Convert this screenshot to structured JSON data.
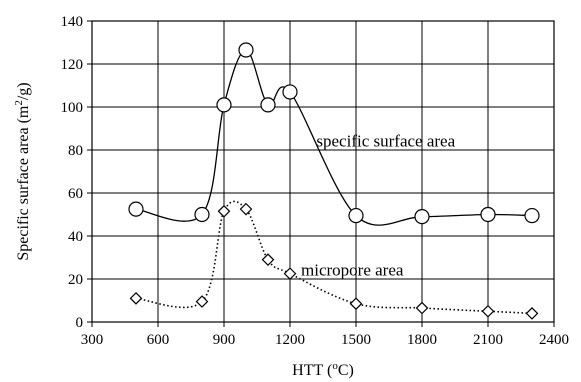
{
  "chart_data": {
    "type": "line",
    "title": "",
    "xlabel": "HTT (",
    "xlabel_sup": "o",
    "xlabel_end": "C)",
    "ylabel": "Specific surface area (m",
    "ylabel_sup": "2",
    "ylabel_end": "/g)",
    "xlim": [
      300,
      2400
    ],
    "ylim": [
      0,
      140
    ],
    "x_ticks": [
      300,
      600,
      900,
      1200,
      1500,
      1800,
      2100,
      2400
    ],
    "y_ticks": [
      0,
      20,
      40,
      60,
      80,
      100,
      120,
      140
    ],
    "x_tick_labels": [
      "300",
      "600",
      "900",
      "1200",
      "1500",
      "1800",
      "2100",
      "2400"
    ],
    "y_tick_labels": [
      "0",
      "20",
      "40",
      "60",
      "80",
      "100",
      "120",
      "140"
    ],
    "grid": true,
    "legend": "none",
    "series": [
      {
        "marker": "circle",
        "line_style": "solid",
        "color": "#000000",
        "x": [
          500,
          800,
          900,
          1000,
          1100,
          1200,
          1500,
          1800,
          2100,
          2300
        ],
        "y": [
          52.5,
          50,
          101,
          126.5,
          101,
          107,
          49.5,
          49,
          50,
          49.5
        ]
      },
      {
        "marker": "diamond",
        "line_style": "dotted",
        "color": "#000000",
        "x": [
          500,
          800,
          900,
          1000,
          1100,
          1200,
          1500,
          1800,
          2100,
          2300
        ],
        "y": [
          11,
          9.5,
          51.5,
          52.5,
          29,
          22.5,
          8.5,
          6.5,
          5,
          4
        ]
      }
    ],
    "annotations": [
      {
        "text": "specific surface area",
        "x": 1320,
        "y": 84
      },
      {
        "text": "micropore area",
        "x": 1250,
        "y": 24
      }
    ]
  }
}
